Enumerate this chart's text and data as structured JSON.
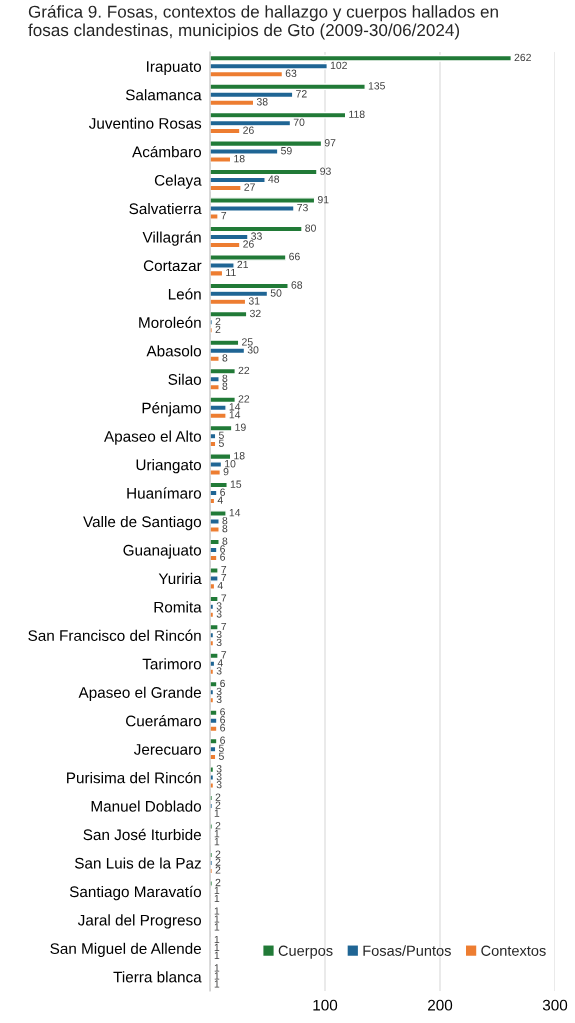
{
  "chart_data": {
    "type": "bar",
    "orientation": "horizontal",
    "title": "Gráfica 9. Fosas, contextos de hallazgo y cuerpos hallados en fosas clandestinas, municipios de Gto (2009-30/06/2024)",
    "categories": [
      "Irapuato",
      "Salamanca",
      "Juventino Rosas",
      "Acámbaro",
      "Celaya",
      "Salvatierra",
      "Villagrán",
      "Cortazar",
      "León",
      "Moroleón",
      "Abasolo",
      "Silao",
      "Pénjamo",
      "Apaseo el Alto",
      "Uriangato",
      "Huanímaro",
      "Valle de Santiago",
      "Guanajuato",
      "Yuriria",
      "Romita",
      "San Francisco del Rincón",
      "Tarimoro",
      "Apaseo el Grande",
      "Cuerámaro",
      "Jerecuaro",
      "Purisima del Rincón",
      "Manuel Doblado",
      "San José Iturbide",
      "San Luis de la Paz",
      "Santiago Maravatío",
      "Jaral del Progreso",
      "San Miguel de Allende",
      "Tierra blanca"
    ],
    "series": [
      {
        "name": "Cuerpos",
        "color": "#217a37",
        "values": [
          262,
          135,
          118,
          97,
          93,
          91,
          80,
          66,
          68,
          32,
          25,
          22,
          22,
          19,
          18,
          15,
          14,
          8,
          7,
          7,
          7,
          7,
          6,
          6,
          6,
          3,
          2,
          2,
          2,
          2,
          1,
          1,
          1
        ]
      },
      {
        "name": "Fosas/Puntos",
        "color": "#1f6594",
        "values": [
          102,
          72,
          70,
          59,
          48,
          73,
          33,
          21,
          50,
          2,
          30,
          8,
          14,
          5,
          10,
          6,
          8,
          6,
          7,
          3,
          3,
          4,
          3,
          6,
          5,
          3,
          2,
          1,
          2,
          1,
          1,
          1,
          1
        ]
      },
      {
        "name": "Contextos",
        "color": "#ed7d31",
        "values": [
          63,
          38,
          26,
          18,
          27,
          7,
          26,
          11,
          31,
          2,
          8,
          8,
          14,
          5,
          9,
          4,
          8,
          6,
          4,
          3,
          3,
          3,
          3,
          6,
          5,
          3,
          1,
          1,
          2,
          1,
          1,
          1,
          1
        ]
      }
    ],
    "xlim": [
      0,
      300
    ],
    "xticks": [
      {
        "value": 0,
        "label": null
      },
      100,
      200,
      300
    ],
    "grid": "x",
    "legend": "bottom right",
    "data_labels": true
  }
}
